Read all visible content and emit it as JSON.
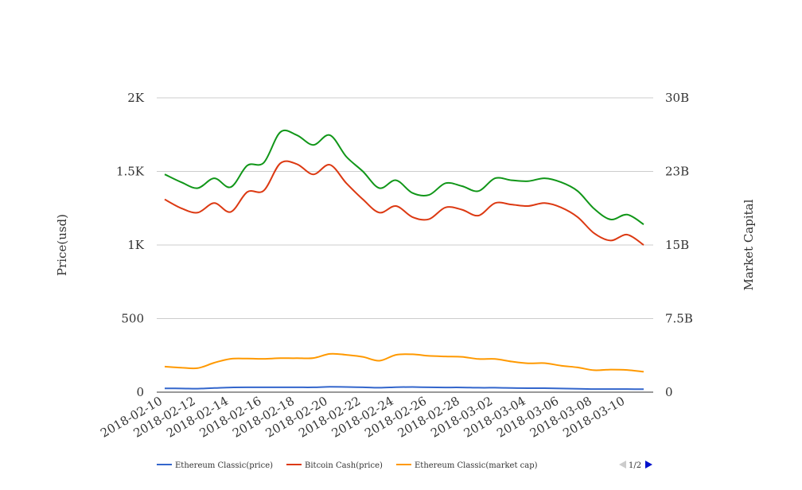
{
  "chart_data": {
    "type": "line",
    "x": [
      "2018-02-10",
      "2018-02-11",
      "2018-02-12",
      "2018-02-13",
      "2018-02-14",
      "2018-02-15",
      "2018-02-16",
      "2018-02-17",
      "2018-02-18",
      "2018-02-19",
      "2018-02-20",
      "2018-02-21",
      "2018-02-22",
      "2018-02-23",
      "2018-02-24",
      "2018-02-25",
      "2018-02-26",
      "2018-02-27",
      "2018-02-28",
      "2018-03-01",
      "2018-03-02",
      "2018-03-03",
      "2018-03-04",
      "2018-03-05",
      "2018-03-06",
      "2018-03-07",
      "2018-03-08",
      "2018-03-09",
      "2018-03-10",
      "2018-03-11"
    ],
    "x_tick_labels": [
      "2018-02-10",
      "2018-02-12",
      "2018-02-14",
      "2018-02-16",
      "2018-02-18",
      "2018-02-20",
      "2018-02-22",
      "2018-02-24",
      "2018-02-26",
      "2018-02-28",
      "2018-03-02",
      "2018-03-04",
      "2018-03-06",
      "2018-03-08",
      "2018-03-10"
    ],
    "y_left": {
      "label": "Price(usd)",
      "range": [
        0,
        2000
      ],
      "ticks": [
        0,
        500,
        1000,
        1500,
        2000
      ],
      "tick_labels": [
        "0",
        "500",
        "1K",
        "1.5K",
        "2K"
      ]
    },
    "y_right": {
      "label": "Market Capital",
      "range": [
        0,
        30000000000
      ],
      "ticks": [
        0,
        7500000000,
        15000000000,
        22500000000,
        30000000000
      ],
      "tick_labels": [
        "0",
        "7.5B",
        "15B",
        "23B",
        "30B"
      ]
    },
    "grid": true,
    "legend_position": "bottom",
    "series": [
      {
        "name": "Ethereum Classic(price)",
        "axis": "left",
        "color": "#3366cc",
        "values": [
          26,
          25,
          24,
          28,
          32,
          33,
          33,
          33,
          33,
          33,
          36,
          35,
          33,
          30,
          34,
          35,
          33,
          32,
          32,
          30,
          30,
          28,
          27,
          27,
          25,
          23,
          21,
          21,
          21,
          20
        ],
        "show_in_legend": true
      },
      {
        "name": "Bitcoin Cash(price)",
        "axis": "left",
        "color": "#dc3912",
        "values": [
          1310,
          1250,
          1220,
          1285,
          1225,
          1360,
          1370,
          1555,
          1550,
          1480,
          1545,
          1420,
          1310,
          1220,
          1265,
          1190,
          1175,
          1255,
          1240,
          1200,
          1285,
          1275,
          1265,
          1285,
          1255,
          1190,
          1080,
          1030,
          1070,
          1000
        ],
        "show_in_legend": true
      },
      {
        "name": "Ethereum Classic(market cap)",
        "axis": "right",
        "color": "#ff9900",
        "values": [
          2600000000,
          2500000000,
          2450000000,
          3000000000,
          3400000000,
          3420000000,
          3400000000,
          3460000000,
          3460000000,
          3480000000,
          3900000000,
          3800000000,
          3600000000,
          3200000000,
          3800000000,
          3860000000,
          3700000000,
          3640000000,
          3600000000,
          3380000000,
          3380000000,
          3120000000,
          2940000000,
          2960000000,
          2700000000,
          2520000000,
          2240000000,
          2300000000,
          2260000000,
          2080000000
        ],
        "show_in_legend": true
      },
      {
        "name": "",
        "axis": "right",
        "color": "#109618",
        "values": [
          22200000000,
          21400000000,
          20800000000,
          21800000000,
          20900000000,
          23100000000,
          23400000000,
          26500000000,
          26200000000,
          25200000000,
          26200000000,
          24000000000,
          22500000000,
          20800000000,
          21600000000,
          20300000000,
          20100000000,
          21300000000,
          21000000000,
          20500000000,
          21800000000,
          21600000000,
          21500000000,
          21800000000,
          21400000000,
          20500000000,
          18700000000,
          17600000000,
          18100000000,
          17100000000
        ],
        "show_in_legend": false
      }
    ]
  },
  "legend": {
    "pager_text": "1/2"
  }
}
